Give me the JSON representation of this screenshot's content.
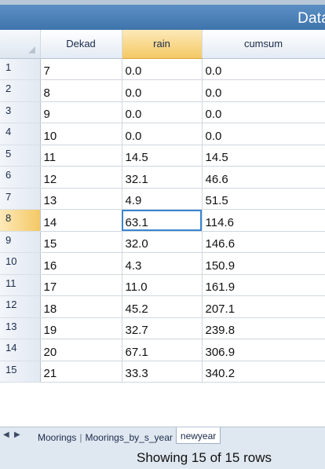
{
  "window": {
    "title": "Data"
  },
  "grid": {
    "columns": [
      "Dekad",
      "rain",
      "cumsum"
    ],
    "active_column": "rain",
    "rows": [
      {
        "num": "1",
        "dekad": "7",
        "rain": "0.0",
        "cumsum": "0.0"
      },
      {
        "num": "2",
        "dekad": "8",
        "rain": "0.0",
        "cumsum": "0.0"
      },
      {
        "num": "3",
        "dekad": "9",
        "rain": "0.0",
        "cumsum": "0.0"
      },
      {
        "num": "4",
        "dekad": "10",
        "rain": "0.0",
        "cumsum": "0.0"
      },
      {
        "num": "5",
        "dekad": "11",
        "rain": "14.5",
        "cumsum": "14.5"
      },
      {
        "num": "6",
        "dekad": "12",
        "rain": "32.1",
        "cumsum": "46.6"
      },
      {
        "num": "7",
        "dekad": "13",
        "rain": "4.9",
        "cumsum": "51.5"
      },
      {
        "num": "8",
        "dekad": "14",
        "rain": "63.1",
        "cumsum": "114.6"
      },
      {
        "num": "9",
        "dekad": "15",
        "rain": "32.0",
        "cumsum": "146.6"
      },
      {
        "num": "10",
        "dekad": "16",
        "rain": "4.3",
        "cumsum": "150.9"
      },
      {
        "num": "11",
        "dekad": "17",
        "rain": "11.0",
        "cumsum": "161.9"
      },
      {
        "num": "12",
        "dekad": "18",
        "rain": "45.2",
        "cumsum": "207.1"
      },
      {
        "num": "13",
        "dekad": "19",
        "rain": "32.7",
        "cumsum": "239.8"
      },
      {
        "num": "14",
        "dekad": "20",
        "rain": "67.1",
        "cumsum": "306.9"
      },
      {
        "num": "15",
        "dekad": "21",
        "rain": "33.3",
        "cumsum": "340.2"
      }
    ],
    "selected_cell": {
      "row": "8",
      "column": "rain"
    }
  },
  "sheet_tabs": {
    "prev_icon": "triangle-left-icon",
    "next_icon": "triangle-right-icon",
    "separator": "|",
    "tabs": [
      {
        "label": "Moorings"
      },
      {
        "label": "Moorings_by_s_year"
      },
      {
        "label": "newyear"
      }
    ],
    "active_tab": "newyear"
  },
  "status_bar": {
    "text": "Showing 15 of 15 rows"
  },
  "colors": {
    "title_bar": "#4a7fb8",
    "header_active": "#f4c865",
    "selection_border": "#3a86d0",
    "tab_bar": "#dfe7f0"
  }
}
